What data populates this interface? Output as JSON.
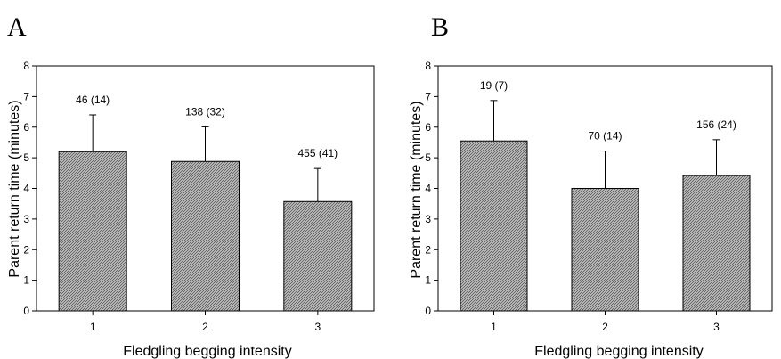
{
  "chart_data": [
    {
      "type": "bar",
      "panel": "A",
      "categories": [
        "1",
        "2",
        "3"
      ],
      "values": [
        5.2,
        4.88,
        3.57
      ],
      "errors": [
        1.2,
        1.13,
        1.08
      ],
      "annotations": [
        "46 (14)",
        "138 (32)",
        "455 (41)"
      ],
      "xlabel": "Fledgling begging intensity",
      "ylabel": "Parent return time (minutes)",
      "ylim": [
        0,
        8
      ],
      "yticks": [
        "0",
        "1",
        "2",
        "3",
        "4",
        "5",
        "6",
        "7",
        "8"
      ],
      "grid": false,
      "legend": "none"
    },
    {
      "type": "bar",
      "panel": "B",
      "categories": [
        "1",
        "2",
        "3"
      ],
      "values": [
        5.55,
        4.0,
        4.42
      ],
      "errors": [
        1.32,
        1.22,
        1.17
      ],
      "annotations": [
        "19 (7)",
        "70 (14)",
        "156 (24)"
      ],
      "xlabel": "Fledgling begging intensity",
      "ylabel": "Parent return time (minutes)",
      "ylim": [
        0,
        8
      ],
      "yticks": [
        "0",
        "1",
        "2",
        "3",
        "4",
        "5",
        "6",
        "7",
        "8"
      ],
      "grid": false,
      "legend": "none"
    }
  ],
  "style": {
    "bar_fill": "#bdbdbd",
    "bar_hatch": "#5a5a5a",
    "axis_color": "#000000"
  }
}
